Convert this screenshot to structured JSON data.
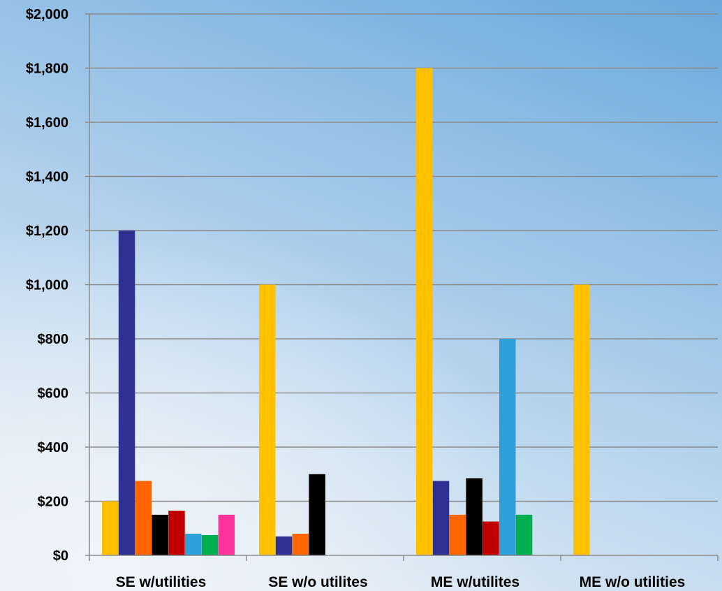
{
  "chart_data": {
    "type": "bar",
    "title": "",
    "xlabel": "",
    "ylabel": "",
    "categories": [
      "SE w/utilities",
      "SE w/o utilites",
      "ME w/utilites",
      "ME w/o utilities"
    ],
    "ylim": [
      0,
      2000
    ],
    "yticks": [
      0,
      200,
      400,
      600,
      800,
      1000,
      1200,
      1400,
      1600,
      1800,
      2000
    ],
    "ytick_labels": [
      "$0",
      "$200",
      "$400",
      "$600",
      "$800",
      "$1,000",
      "$1,200",
      "$1,400",
      "$1,600",
      "$1,800",
      "$2,000"
    ],
    "grid": true,
    "legend": "none",
    "series": [
      {
        "color": "#FFC000",
        "values": [
          200,
          1000,
          1800,
          1000
        ]
      },
      {
        "color": "#2E3192",
        "values": [
          1200,
          70,
          275,
          null
        ]
      },
      {
        "color": "#FF6600",
        "values": [
          275,
          80,
          150,
          null
        ]
      },
      {
        "color": "#000000",
        "values": [
          150,
          300,
          285,
          null
        ]
      },
      {
        "color": "#C00000",
        "values": [
          165,
          null,
          125,
          null
        ]
      },
      {
        "color": "#2E9FDA",
        "values": [
          80,
          null,
          800,
          null
        ]
      },
      {
        "color": "#00B050",
        "values": [
          75,
          null,
          150,
          null
        ]
      },
      {
        "color": "#FF3399",
        "values": [
          150,
          null,
          null,
          null
        ]
      }
    ]
  }
}
